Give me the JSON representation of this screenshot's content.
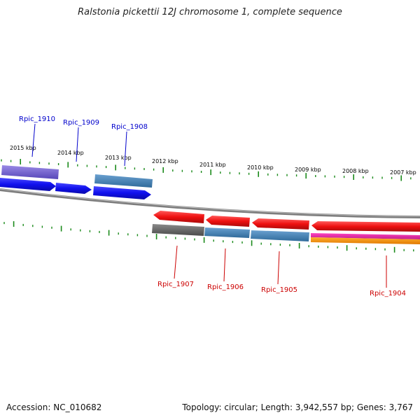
{
  "title": "Ralstonia pickettii 12J chromosome 1, complete sequence",
  "footer": {
    "accession": "Accession: NC_010682",
    "summary": "Topology: circular; Length: 3,942,557 bp; Genes: 3,767"
  },
  "colors": {
    "backbone": "#7d7d7d",
    "tick": "#1a8a1a",
    "label_forward": "#0000cc",
    "label_reverse": "#cc0000"
  },
  "scale_labels": [
    "2015 kbp",
    "2014 kbp",
    "2013 kbp",
    "2012 kbp",
    "2011 kbp",
    "2010 kbp",
    "2009 kbp",
    "2008 kbp",
    "2007 kbp"
  ],
  "genes_forward": [
    {
      "name": "Rpic_1910",
      "color": "#1a1aee"
    },
    {
      "name": "Rpic_1909",
      "color": "#1a1aee"
    },
    {
      "name": "Rpic_1908",
      "color": "#1a1aee"
    }
  ],
  "genes_reverse": [
    {
      "name": "Rpic_1907",
      "color": "#ee1a1a"
    },
    {
      "name": "Rpic_1906",
      "color": "#ee1a1a"
    },
    {
      "name": "Rpic_1905",
      "color": "#ee1a1a"
    },
    {
      "name": "Rpic_1904",
      "color": "#ee1a1a"
    }
  ]
}
